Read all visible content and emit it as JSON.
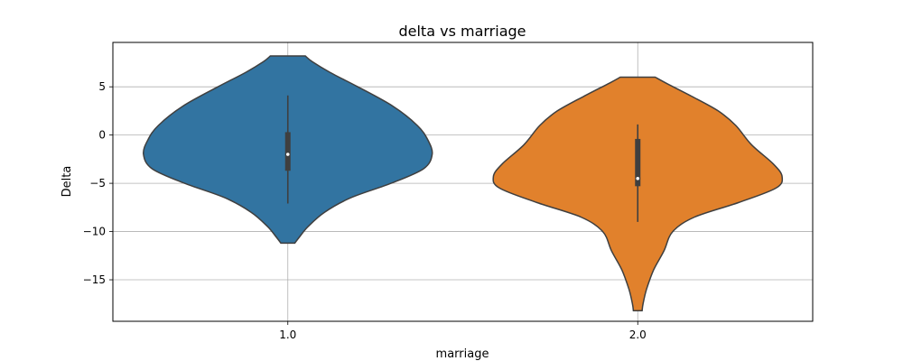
{
  "chart_data": {
    "type": "violin",
    "title": "delta vs marriage",
    "xlabel": "marriage",
    "ylabel": "Delta",
    "ylim": [
      -19.3,
      9.6
    ],
    "yticks": [
      5,
      0,
      -5,
      -10,
      -15
    ],
    "ytick_labels": [
      "5",
      "0",
      "−5",
      "−10",
      "−15"
    ],
    "grid": true,
    "categories": [
      "1.0",
      "2.0"
    ],
    "violins": [
      {
        "category": "1.0",
        "color": "#3274a1",
        "profile": [
          [
            8.2,
            0.2
          ],
          [
            7.6,
            0.28
          ],
          [
            6.5,
            0.48
          ],
          [
            5.0,
            0.8
          ],
          [
            3.0,
            1.2
          ],
          [
            1.0,
            1.48
          ],
          [
            -0.5,
            1.6
          ],
          [
            -2.0,
            1.65
          ],
          [
            -3.5,
            1.55
          ],
          [
            -5.0,
            1.18
          ],
          [
            -6.5,
            0.72
          ],
          [
            -8.0,
            0.42
          ],
          [
            -9.5,
            0.23
          ],
          [
            -10.6,
            0.13
          ],
          [
            -11.2,
            0.08
          ]
        ],
        "box": {
          "q1": -3.7,
          "median": -2.0,
          "q3": 0.3,
          "whisker_low": -7.1,
          "whisker_high": 4.1
        }
      },
      {
        "category": "2.0",
        "color": "#e1812c",
        "profile": [
          [
            6.0,
            0.2
          ],
          [
            5.4,
            0.32
          ],
          [
            4.0,
            0.62
          ],
          [
            2.5,
            0.92
          ],
          [
            1.0,
            1.12
          ],
          [
            -1.0,
            1.3
          ],
          [
            -3.0,
            1.55
          ],
          [
            -4.3,
            1.65
          ],
          [
            -5.5,
            1.58
          ],
          [
            -7.0,
            1.15
          ],
          [
            -8.5,
            0.65
          ],
          [
            -10.0,
            0.4
          ],
          [
            -12.0,
            0.3
          ],
          [
            -14.0,
            0.18
          ],
          [
            -16.0,
            0.1
          ],
          [
            -17.5,
            0.06
          ],
          [
            -18.2,
            0.05
          ]
        ],
        "box": {
          "q1": -5.3,
          "median": -4.5,
          "q3": -0.4,
          "whisker_low": -9.0,
          "whisker_high": 1.1
        }
      }
    ]
  }
}
